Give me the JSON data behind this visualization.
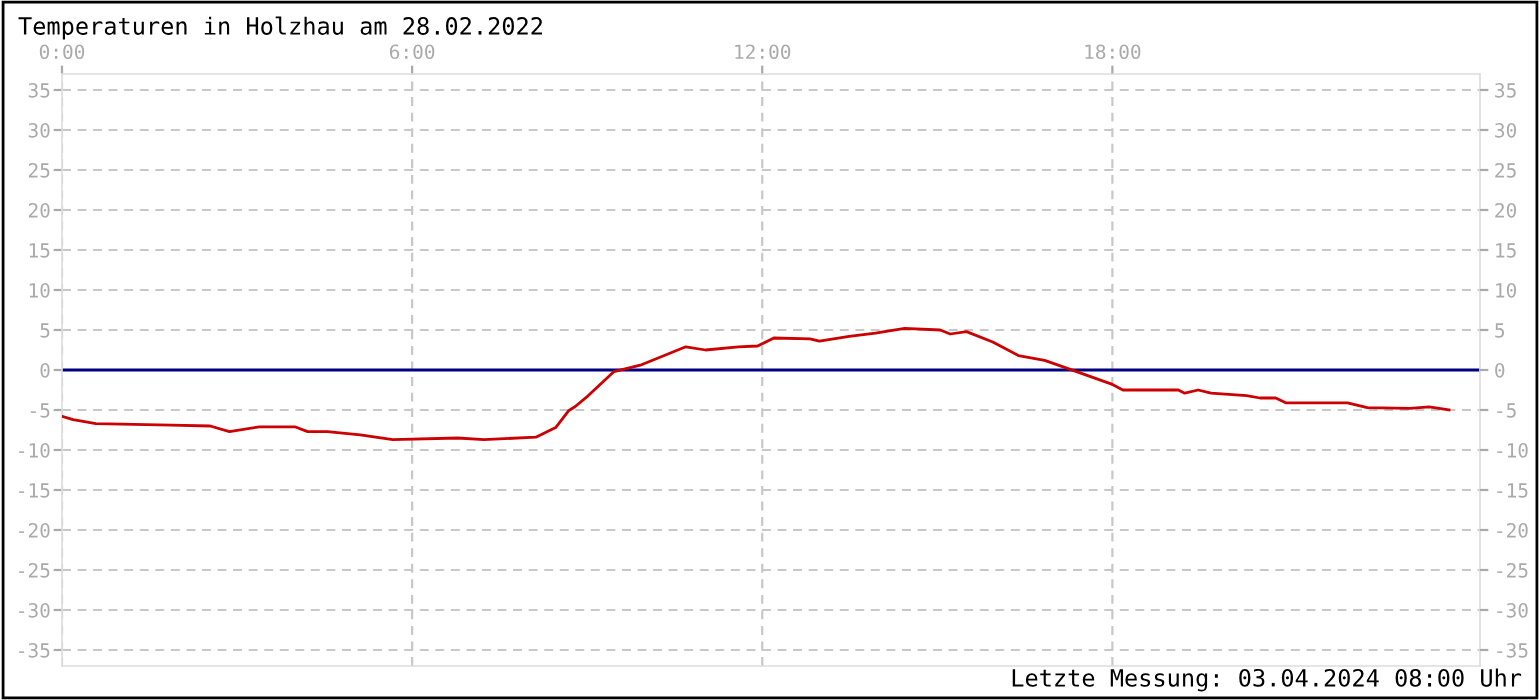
{
  "chart_data": {
    "type": "line",
    "title": "Temperaturen in Holzhau am 28.02.2022",
    "annotations": [
      "Letzte Messung: 03.04.2024 08:00 Uhr"
    ],
    "series": [
      {
        "color": "#cc0000",
        "x": [
          0,
          0.19,
          0.58,
          1.87,
          2.54,
          2.87,
          3.38,
          3.99,
          4.21,
          4.55,
          5.11,
          5.67,
          6.78,
          7.23,
          8.12,
          8.46,
          8.68,
          8.79,
          9.02,
          9.46,
          9.91,
          10.69,
          11.03,
          11.59,
          11.92,
          12.2,
          12.82,
          12.98,
          13.49,
          13.94,
          14.44,
          15.05,
          15.22,
          15.5,
          15.95,
          16.39,
          16.84,
          17.23,
          18.0,
          18.18,
          19.13,
          19.24,
          19.47,
          19.69,
          20.3,
          20.53,
          20.8,
          20.97,
          22.03,
          22.37,
          23.1,
          23.43,
          23.77
        ],
        "values": [
          -5.8,
          -6.2,
          -6.7,
          -6.9,
          -7.0,
          -7.7,
          -7.1,
          -7.1,
          -7.7,
          -7.7,
          -8.1,
          -8.7,
          -8.5,
          -8.7,
          -8.4,
          -7.2,
          -5.1,
          -4.6,
          -3.2,
          -0.2,
          0.6,
          2.9,
          2.5,
          2.9,
          3.0,
          4.0,
          3.9,
          3.6,
          4.2,
          4.6,
          5.2,
          5.0,
          4.5,
          4.8,
          3.5,
          1.8,
          1.2,
          0.2,
          -1.8,
          -2.5,
          -2.5,
          -2.9,
          -2.5,
          -2.9,
          -3.2,
          -3.5,
          -3.5,
          -4.1,
          -4.1,
          -4.7,
          -4.8,
          -4.6,
          -5.0
        ]
      }
    ],
    "xlim": [
      0,
      24.3
    ],
    "xticks": [
      {
        "value": 0,
        "label": "0:00"
      },
      {
        "value": 6,
        "label": "6:00"
      },
      {
        "value": 12,
        "label": "12:00"
      },
      {
        "value": 18,
        "label": "18:00"
      }
    ],
    "ylim": [
      -37,
      37
    ],
    "yticks": [
      -35,
      -30,
      -25,
      -20,
      -15,
      -10,
      -5,
      0,
      5,
      10,
      15,
      20,
      25,
      30,
      35
    ],
    "y2lim": [
      -37,
      37
    ],
    "y2ticks": [
      -35,
      -30,
      -25,
      -20,
      -15,
      -10,
      -5,
      0,
      5,
      10,
      15,
      20,
      25,
      30,
      35
    ],
    "ref_lines": [
      {
        "axis": "y",
        "value": 0,
        "color": "#000080",
        "line_style": "solid"
      }
    ],
    "grid": true,
    "legend": false,
    "marker": "none",
    "line_style": "solid"
  }
}
